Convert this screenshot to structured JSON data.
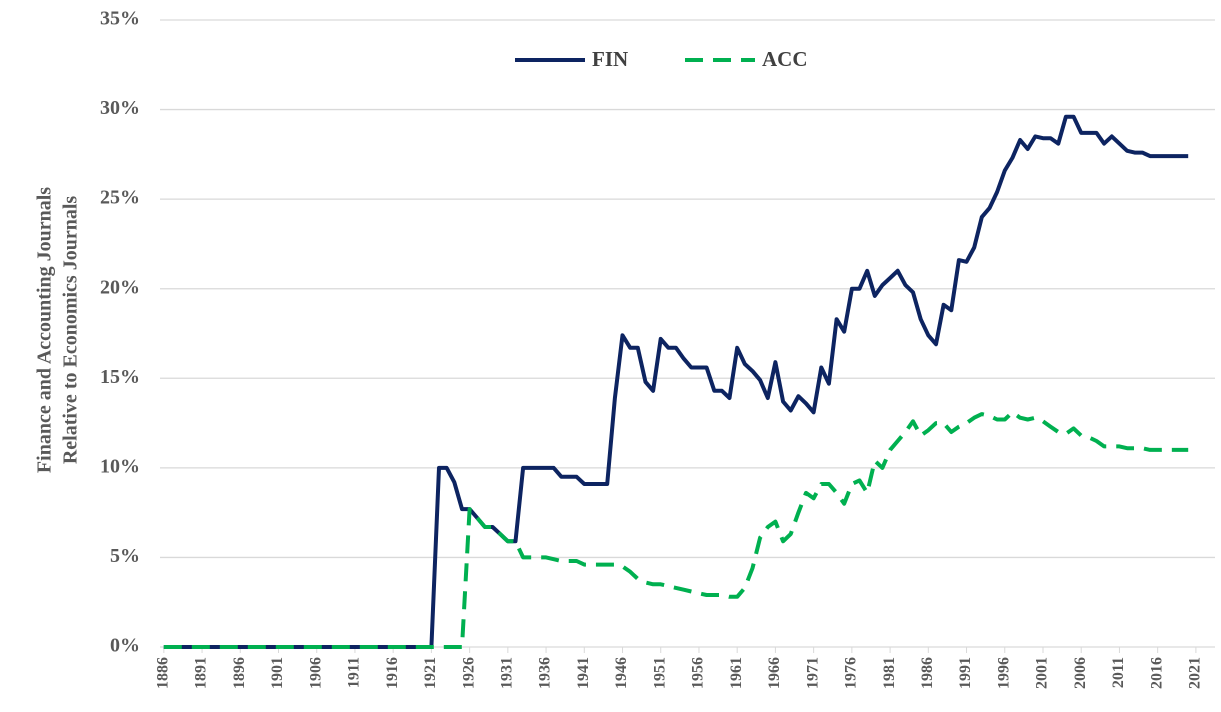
{
  "chart_data": {
    "type": "line",
    "ylabel": [
      "Finance and Accounting Journals",
      "Relative to Economics Journals"
    ],
    "x": [
      1886,
      1887,
      1888,
      1889,
      1890,
      1891,
      1892,
      1893,
      1894,
      1895,
      1896,
      1897,
      1898,
      1899,
      1900,
      1901,
      1902,
      1903,
      1904,
      1905,
      1906,
      1907,
      1908,
      1909,
      1910,
      1911,
      1912,
      1913,
      1914,
      1915,
      1916,
      1917,
      1918,
      1919,
      1920,
      1921,
      1922,
      1923,
      1924,
      1925,
      1926,
      1927,
      1928,
      1929,
      1930,
      1931,
      1932,
      1933,
      1934,
      1935,
      1936,
      1937,
      1938,
      1939,
      1940,
      1941,
      1942,
      1943,
      1944,
      1945,
      1946,
      1947,
      1948,
      1949,
      1950,
      1951,
      1952,
      1953,
      1954,
      1955,
      1956,
      1957,
      1958,
      1959,
      1960,
      1961,
      1962,
      1963,
      1964,
      1965,
      1966,
      1967,
      1968,
      1969,
      1970,
      1971,
      1972,
      1973,
      1974,
      1975,
      1976,
      1977,
      1978,
      1979,
      1980,
      1981,
      1982,
      1983,
      1984,
      1985,
      1986,
      1987,
      1988,
      1989,
      1990,
      1991,
      1992,
      1993,
      1994,
      1995,
      1996,
      1997,
      1998,
      1999,
      2000,
      2001,
      2002,
      2003,
      2004,
      2005,
      2006,
      2007,
      2008,
      2009,
      2010,
      2011,
      2012,
      2013,
      2014,
      2015,
      2016,
      2017,
      2018,
      2019,
      2020
    ],
    "series": [
      {
        "name": "FIN",
        "color": "#0d2461",
        "dash": false,
        "values": [
          0,
          0,
          0,
          0,
          0,
          0,
          0,
          0,
          0,
          0,
          0,
          0,
          0,
          0,
          0,
          0,
          0,
          0,
          0,
          0,
          0,
          0,
          0,
          0,
          0,
          0,
          0,
          0,
          0,
          0,
          0,
          0,
          0,
          0,
          0,
          0,
          10,
          10,
          9.2,
          7.7,
          7.7,
          7.2,
          6.7,
          6.7,
          6.3,
          5.9,
          5.9,
          10,
          10,
          10,
          10,
          10,
          9.5,
          9.5,
          9.5,
          9.1,
          9.1,
          9.1,
          9.1,
          13.9,
          17.4,
          16.7,
          16.7,
          14.8,
          14.3,
          17.2,
          16.7,
          16.7,
          16.1,
          15.6,
          15.6,
          15.6,
          14.3,
          14.3,
          13.9,
          16.7,
          15.8,
          15.4,
          14.9,
          13.9,
          15.9,
          13.7,
          13.2,
          14.0,
          13.6,
          13.1,
          15.6,
          14.7,
          18.3,
          17.6,
          20.0,
          20.0,
          21.0,
          19.6,
          20.2,
          20.6,
          21.0,
          20.2,
          19.8,
          18.3,
          17.4,
          16.9,
          19.1,
          18.8,
          21.6,
          21.5,
          22.3,
          24.0,
          24.5,
          25.4,
          26.6,
          27.3,
          28.3,
          27.8,
          28.5,
          28.4,
          28.4,
          28.1,
          29.6,
          29.6,
          28.7,
          28.7,
          28.7,
          28.1,
          28.5,
          28.1,
          27.7,
          27.6,
          27.6,
          27.4,
          27.4,
          27.4,
          27.4,
          27.4,
          27.4
        ]
      },
      {
        "name": "ACC",
        "color": "#00b050",
        "dash": true,
        "values": [
          0,
          0,
          0,
          0,
          0,
          0,
          0,
          0,
          0,
          0,
          0,
          0,
          0,
          0,
          0,
          0,
          0,
          0,
          0,
          0,
          0,
          0,
          0,
          0,
          0,
          0,
          0,
          0,
          0,
          0,
          0,
          0,
          0,
          0,
          0,
          0,
          0,
          0,
          0,
          0,
          7.7,
          7.2,
          6.7,
          6.7,
          6.3,
          5.9,
          5.9,
          5.0,
          5.0,
          5.0,
          5.0,
          4.9,
          4.8,
          4.8,
          4.8,
          4.6,
          4.6,
          4.6,
          4.6,
          4.6,
          4.5,
          4.2,
          3.8,
          3.6,
          3.5,
          3.5,
          3.4,
          3.3,
          3.2,
          3.1,
          3.0,
          2.9,
          2.9,
          2.9,
          2.8,
          2.8,
          3.3,
          4.4,
          6.1,
          6.7,
          7.0,
          5.9,
          6.3,
          7.5,
          8.6,
          8.3,
          9.1,
          9.1,
          8.6,
          8.0,
          9.1,
          9.3,
          8.6,
          10.4,
          10.0,
          11.0,
          11.5,
          12.0,
          12.6,
          11.8,
          12.1,
          12.5,
          12.5,
          12.0,
          12.3,
          12.5,
          12.8,
          13.0,
          12.9,
          12.7,
          12.7,
          13.1,
          12.8,
          12.7,
          12.8,
          12.6,
          12.3,
          12.0,
          11.9,
          12.2,
          11.8,
          11.7,
          11.5,
          11.2,
          11.2,
          11.2,
          11.1,
          11.1,
          11.1,
          11.0,
          11.0,
          11.0,
          11.0,
          11.0,
          11.0
        ]
      }
    ],
    "xlim": [
      1885.5,
      2023.5
    ],
    "xticks": [
      1886,
      1891,
      1896,
      1901,
      1906,
      1911,
      1916,
      1921,
      1926,
      1931,
      1936,
      1941,
      1946,
      1951,
      1956,
      1961,
      1966,
      1971,
      1976,
      1981,
      1986,
      1991,
      1996,
      2001,
      2006,
      2011,
      2016,
      2021
    ],
    "ylim": [
      0,
      35
    ],
    "yticks": [
      {
        "value": 0,
        "label": "0%"
      },
      {
        "value": 5,
        "label": "5%"
      },
      {
        "value": 10,
        "label": "10%"
      },
      {
        "value": 15,
        "label": "15%"
      },
      {
        "value": 20,
        "label": "20%"
      },
      {
        "value": 25,
        "label": "25%"
      },
      {
        "value": 30,
        "label": "30%"
      },
      {
        "value": 35,
        "label": "35%"
      }
    ],
    "grid": true,
    "legend": "top"
  }
}
